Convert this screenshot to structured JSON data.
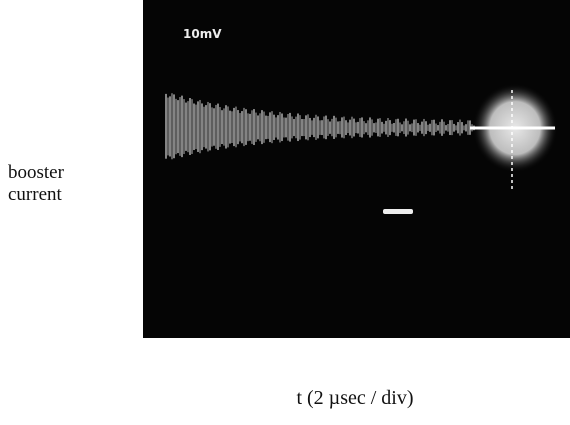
{
  "scope": {
    "label": "10mV"
  },
  "y_label": [
    "booster",
    "current"
  ],
  "x_label": "t (2 µsec / div)"
}
